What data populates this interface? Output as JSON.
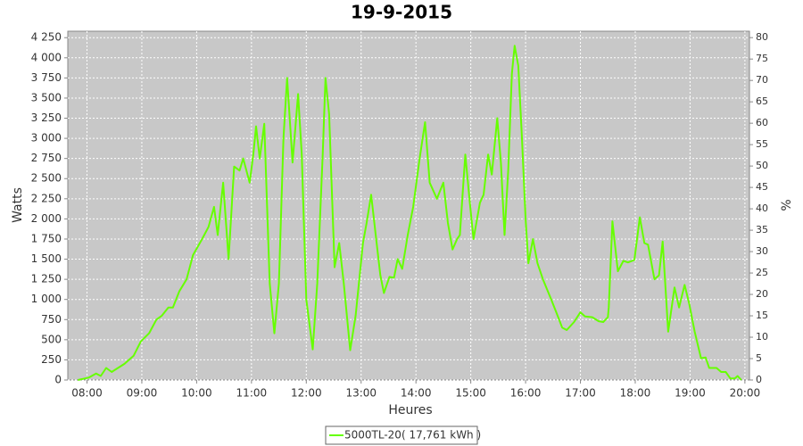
{
  "chart_data": {
    "type": "line",
    "title": "19-9-2015",
    "x_label": "Heures",
    "y_label": "Watts",
    "y2_label": "%",
    "x": [
      "07:50",
      "08:02",
      "08:10",
      "08:15",
      "08:21",
      "08:27",
      "08:41",
      "08:51",
      "08:59",
      "09:08",
      "09:16",
      "09:22",
      "09:29",
      "09:34",
      "09:41",
      "09:49",
      "09:56",
      "10:06",
      "10:13",
      "10:19",
      "10:23",
      "10:29",
      "10:35",
      "10:41",
      "10:47",
      "10:51",
      "10:58",
      "11:02",
      "11:05",
      "11:09",
      "11:14",
      "11:20",
      "11:25",
      "11:30",
      "11:35",
      "11:39",
      "11:45",
      "11:51",
      "11:55",
      "12:00",
      "12:07",
      "12:12",
      "12:18",
      "12:21",
      "12:25",
      "12:31",
      "12:36",
      "12:41",
      "12:48",
      "12:54",
      "13:02",
      "13:06",
      "13:11",
      "13:16",
      "13:21",
      "13:25",
      "13:31",
      "13:36",
      "13:40",
      "13:45",
      "13:51",
      "13:57",
      "14:04",
      "14:10",
      "14:15",
      "14:23",
      "14:30",
      "14:35",
      "14:40",
      "14:45",
      "14:48",
      "14:54",
      "14:59",
      "15:03",
      "15:10",
      "15:14",
      "15:19",
      "15:23",
      "15:29",
      "15:33",
      "15:37",
      "15:41",
      "15:45",
      "15:48",
      "15:52",
      "15:56",
      "16:00",
      "16:03",
      "16:08",
      "16:13",
      "16:19",
      "16:28",
      "16:35",
      "16:40",
      "16:45",
      "16:53",
      "17:00",
      "17:05",
      "17:13",
      "17:20",
      "17:25",
      "17:30",
      "17:31",
      "17:35",
      "17:41",
      "17:47",
      "17:52",
      "17:59",
      "18:05",
      "18:10",
      "18:14",
      "18:21",
      "18:26",
      "18:30",
      "18:36",
      "18:43",
      "18:48",
      "18:54",
      "18:59",
      "19:05",
      "19:12",
      "19:17",
      "19:21",
      "19:29",
      "19:34",
      "19:39",
      "19:44",
      "19:49",
      "19:52",
      "19:56"
    ],
    "series": [
      {
        "name": "5000TL-20( 17,761 kWh )",
        "color": "#66ff00",
        "values": [
          0,
          30,
          80,
          50,
          150,
          100,
          200,
          300,
          480,
          580,
          750,
          800,
          900,
          900,
          1100,
          1250,
          1550,
          1750,
          1900,
          2150,
          1800,
          2450,
          1500,
          2650,
          2600,
          2750,
          2450,
          2800,
          3150,
          2750,
          3180,
          1200,
          580,
          1200,
          3000,
          3750,
          2700,
          3550,
          2800,
          1000,
          380,
          1200,
          2800,
          3750,
          3300,
          1400,
          1700,
          1200,
          370,
          800,
          1700,
          1950,
          2300,
          1800,
          1300,
          1080,
          1280,
          1270,
          1500,
          1380,
          1800,
          2150,
          2750,
          3200,
          2450,
          2250,
          2450,
          1950,
          1620,
          1750,
          1800,
          2800,
          2200,
          1750,
          2200,
          2300,
          2800,
          2550,
          3250,
          2700,
          1800,
          2600,
          3800,
          4150,
          3900,
          3000,
          2000,
          1450,
          1750,
          1450,
          1250,
          1000,
          800,
          650,
          620,
          720,
          840,
          790,
          780,
          730,
          720,
          780,
          900,
          1970,
          1350,
          1480,
          1460,
          1490,
          2020,
          1700,
          1680,
          1250,
          1300,
          1720,
          600,
          1150,
          900,
          1180,
          950,
          600,
          270,
          280,
          150,
          150,
          100,
          100,
          20,
          20,
          50,
          0
        ]
      }
    ],
    "xlim": [
      "07:39",
      "20:05"
    ],
    "xticks": [
      "08:00",
      "09:00",
      "10:00",
      "11:00",
      "12:00",
      "13:00",
      "14:00",
      "15:00",
      "16:00",
      "17:00",
      "18:00",
      "19:00",
      "20:00"
    ],
    "ylim": [
      0,
      4330
    ],
    "yticks": [
      0,
      250,
      500,
      750,
      {
        "value": 1000,
        "label": "1 000"
      },
      {
        "value": 1250,
        "label": "1 250"
      },
      {
        "value": 1500,
        "label": "1 500"
      },
      {
        "value": 1750,
        "label": "1 750"
      },
      {
        "value": 2000,
        "label": "2 000"
      },
      {
        "value": 2250,
        "label": "2 250"
      },
      {
        "value": 2500,
        "label": "2 500"
      },
      {
        "value": 2750,
        "label": "2 750"
      },
      {
        "value": 3000,
        "label": "3 000"
      },
      {
        "value": 3250,
        "label": "3 250"
      },
      {
        "value": 3500,
        "label": "3 500"
      },
      {
        "value": 3750,
        "label": "3 750"
      },
      {
        "value": 4000,
        "label": "4 000"
      },
      {
        "value": 4250,
        "label": "4 250"
      }
    ],
    "y2lim": [
      0,
      81.5
    ],
    "y2ticks": [
      0,
      5,
      10,
      15,
      20,
      25,
      30,
      35,
      40,
      45,
      50,
      55,
      60,
      65,
      70,
      75,
      80
    ],
    "grid": true
  }
}
